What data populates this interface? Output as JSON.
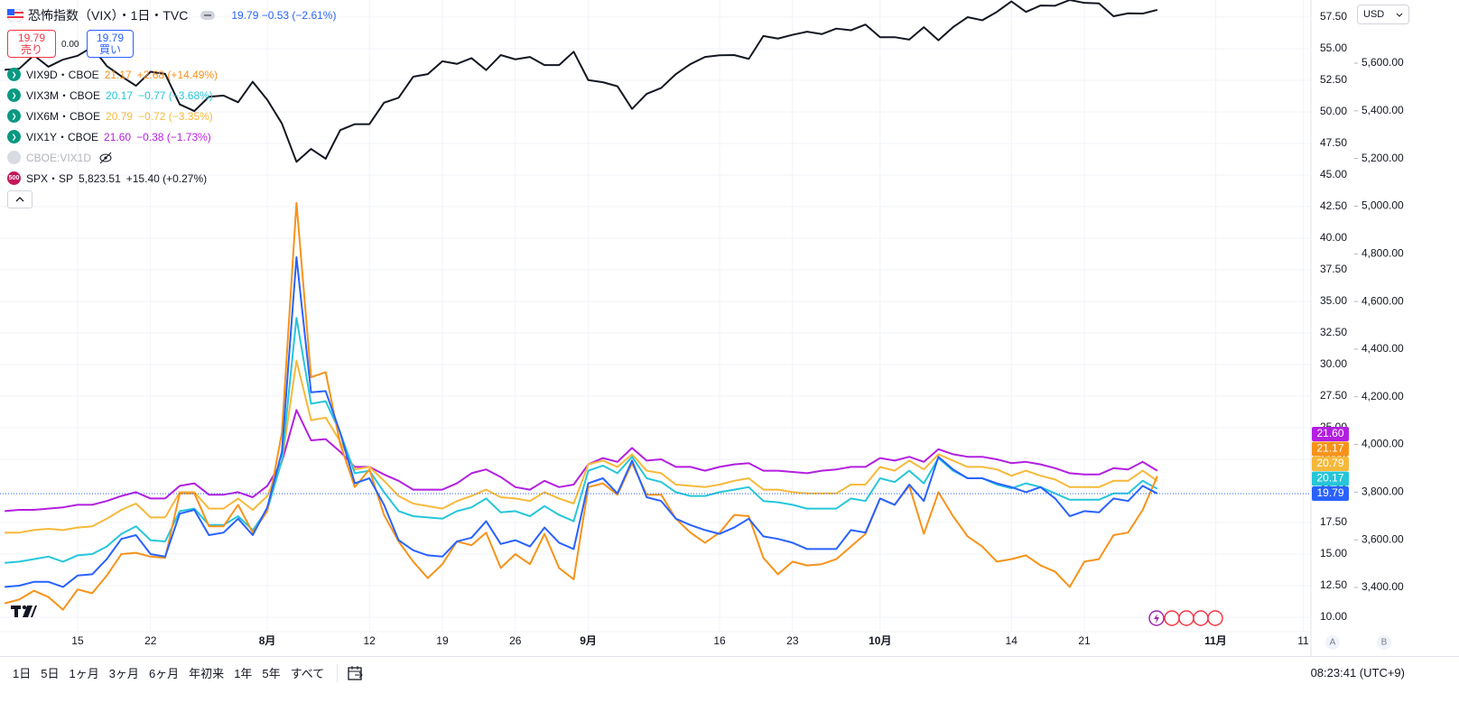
{
  "chart_data": {
    "type": "line",
    "title": "恐怖指数（VIX）・1日・TVC",
    "x": [
      0,
      1,
      2,
      3,
      4,
      5,
      6,
      7,
      8,
      9,
      10,
      11,
      12,
      13,
      14,
      15,
      16,
      17,
      18,
      19,
      20,
      21,
      22,
      23,
      24,
      25,
      26,
      27,
      28,
      29,
      30,
      31,
      32,
      33,
      34,
      35,
      36,
      37,
      38,
      39,
      40,
      41,
      42,
      43,
      44,
      45,
      46,
      47,
      48,
      49,
      50,
      51,
      52,
      53,
      54,
      55,
      56,
      57,
      58,
      59,
      60,
      61,
      62,
      63,
      64,
      65,
      66,
      67,
      68,
      69,
      70,
      71,
      72,
      73,
      74,
      75,
      76,
      77,
      78,
      79
    ],
    "xlim": [
      -0.32,
      89.53
    ],
    "xticks": [
      {
        "value": 5,
        "label": "15"
      },
      {
        "value": 10,
        "label": "22"
      },
      {
        "value": 18,
        "label": "8月"
      },
      {
        "value": 25,
        "label": "12"
      },
      {
        "value": 30,
        "label": "19"
      },
      {
        "value": 35,
        "label": "26"
      },
      {
        "value": 40,
        "label": "9月"
      },
      {
        "value": 49,
        "label": "16"
      },
      {
        "value": 54,
        "label": "23"
      },
      {
        "value": 60,
        "label": "10月"
      },
      {
        "value": 69,
        "label": "14"
      },
      {
        "value": 74,
        "label": "21"
      },
      {
        "value": 83,
        "label": "11月"
      },
      {
        "value": 89,
        "label": "11"
      }
    ],
    "ylim": [
      8.857,
      58.857
    ],
    "yticks": [
      {
        "value": 10,
        "label": "10.00"
      },
      {
        "value": 12.5,
        "label": "12.50"
      },
      {
        "value": 15,
        "label": "15.00"
      },
      {
        "value": 17.5,
        "label": "17.50"
      },
      {
        "value": 20,
        "label": "20.00"
      },
      {
        "value": 22.5,
        "label": "22.50"
      },
      {
        "value": 25,
        "label": "25.00"
      },
      {
        "value": 27.5,
        "label": "27.50"
      },
      {
        "value": 30,
        "label": "30.00"
      },
      {
        "value": 32.5,
        "label": "32.50"
      },
      {
        "value": 35,
        "label": "35.00"
      },
      {
        "value": 37.5,
        "label": "37.50"
      },
      {
        "value": 40,
        "label": "40.00"
      },
      {
        "value": 42.5,
        "label": "42.50"
      },
      {
        "value": 45,
        "label": "45.00"
      },
      {
        "value": 47.5,
        "label": "47.50"
      },
      {
        "value": 50,
        "label": "50.00"
      },
      {
        "value": 52.5,
        "label": "52.50"
      },
      {
        "value": 55,
        "label": "55.00"
      },
      {
        "value": 57.5,
        "label": "57.50"
      }
    ],
    "y2lim": [
      3214.5,
      5865.0
    ],
    "y2ticks": [
      {
        "value": 3400,
        "label": "3,400.00"
      },
      {
        "value": 3600,
        "label": "3,600.00"
      },
      {
        "value": 3800,
        "label": "3,800.00"
      },
      {
        "value": 4000,
        "label": "4,000.00"
      },
      {
        "value": 4200,
        "label": "4,200.00"
      },
      {
        "value": 4400,
        "label": "4,400.00"
      },
      {
        "value": 4600,
        "label": "4,600.00"
      },
      {
        "value": 4800,
        "label": "4,800.00"
      },
      {
        "value": 5000,
        "label": "5,000.00"
      },
      {
        "value": 5200,
        "label": "5,200.00"
      },
      {
        "value": 5400,
        "label": "5,400.00"
      },
      {
        "value": 5600,
        "label": "5,600.00"
      }
    ],
    "grid": true,
    "series": [
      {
        "color": "#2962ff",
        "last": "19.79",
        "change": "−0.53 (−2.61%)",
        "values": [
          12.4,
          12.5,
          12.8,
          12.8,
          12.4,
          13.3,
          13.4,
          14.6,
          16.2,
          16.5,
          15.0,
          14.8,
          18.2,
          18.5,
          16.5,
          16.7,
          17.8,
          16.5,
          18.7,
          23.1,
          38.5,
          27.8,
          27.9,
          24.6,
          20.6,
          21.0,
          18.9,
          16.1,
          15.3,
          14.9,
          14.8,
          16.0,
          16.3,
          17.6,
          15.8,
          16.1,
          15.6,
          17.1,
          15.9,
          15.4,
          20.6,
          21.0,
          19.8,
          22.4,
          19.5,
          19.2,
          17.8,
          17.3,
          16.9,
          16.6,
          17.1,
          17.8,
          16.4,
          16.2,
          15.9,
          15.4,
          15.4,
          15.4,
          16.9,
          16.7,
          19.4,
          18.9,
          20.5,
          19.2,
          22.7,
          21.7,
          21.0,
          21.0,
          20.6,
          20.3,
          19.9,
          20.3,
          19.4,
          18.0,
          18.4,
          18.3,
          19.4,
          19.2,
          20.4,
          19.79
        ]
      },
      {
        "name": "VIX9D・CBOE",
        "color": "#f7931a",
        "last": "21.17",
        "change": "+2.68 (+14.49%)",
        "values": [
          11.1,
          11.4,
          12.1,
          11.6,
          10.6,
          12.2,
          11.9,
          13.3,
          15.0,
          15.1,
          14.8,
          14.7,
          19.8,
          19.8,
          17.2,
          17.2,
          18.9,
          16.7,
          18.4,
          24.6,
          42.8,
          29.0,
          29.4,
          23.7,
          20.3,
          21.7,
          18.1,
          16.0,
          14.4,
          13.1,
          14.2,
          16.0,
          15.7,
          16.7,
          13.9,
          15.0,
          14.2,
          16.6,
          13.9,
          13.0,
          20.3,
          20.6,
          19.7,
          22.2,
          19.7,
          19.7,
          17.8,
          16.7,
          15.9,
          16.7,
          18.1,
          18.0,
          14.7,
          13.4,
          14.4,
          14.1,
          14.2,
          14.6,
          15.6,
          16.6,
          19.4,
          18.9,
          20.4,
          16.6,
          19.9,
          18.0,
          16.4,
          15.6,
          14.4,
          14.6,
          14.9,
          14.1,
          13.6,
          12.4,
          14.4,
          14.6,
          16.5,
          16.7,
          18.5,
          21.17
        ]
      },
      {
        "name": "VIX3M・CBOE",
        "color": "#26c6da",
        "last": "20.17",
        "change": "−0.77 (−3.68%)",
        "values": [
          14.3,
          14.4,
          14.6,
          14.8,
          14.4,
          14.9,
          15.0,
          15.6,
          16.6,
          17.2,
          16.1,
          16.0,
          18.4,
          18.6,
          17.3,
          17.3,
          18.0,
          16.9,
          18.5,
          22.4,
          33.7,
          26.9,
          27.1,
          24.6,
          21.4,
          21.6,
          19.9,
          18.4,
          18.0,
          17.9,
          17.8,
          18.4,
          18.7,
          19.4,
          18.3,
          18.4,
          18.0,
          18.8,
          18.1,
          17.6,
          21.6,
          22.0,
          21.4,
          22.7,
          21.0,
          20.7,
          19.9,
          19.6,
          19.6,
          19.9,
          20.1,
          20.3,
          19.2,
          19.1,
          18.9,
          18.6,
          18.6,
          18.6,
          19.4,
          19.2,
          21.0,
          20.7,
          21.6,
          20.6,
          22.6,
          21.6,
          21.0,
          21.0,
          20.5,
          20.2,
          20.6,
          20.3,
          19.8,
          19.3,
          19.3,
          19.3,
          19.8,
          19.8,
          20.8,
          20.17
        ]
      },
      {
        "name": "VIX6M・CBOE",
        "color": "#f6b93b",
        "last": "20.79",
        "change": "−0.72 (−3.35%)",
        "values": [
          16.7,
          16.7,
          16.9,
          17.0,
          16.9,
          17.1,
          17.2,
          17.8,
          18.5,
          19.0,
          17.9,
          17.9,
          19.9,
          19.9,
          18.6,
          18.6,
          19.4,
          18.5,
          19.6,
          22.3,
          30.3,
          25.6,
          25.8,
          23.9,
          21.7,
          21.9,
          20.8,
          19.6,
          19.0,
          18.8,
          18.6,
          19.2,
          19.6,
          20.1,
          19.5,
          19.4,
          19.2,
          19.9,
          19.4,
          19.0,
          22.1,
          22.4,
          21.9,
          22.9,
          21.6,
          21.4,
          20.5,
          20.4,
          20.3,
          20.5,
          20.8,
          21.0,
          20.1,
          20.1,
          19.9,
          19.8,
          19.8,
          19.8,
          20.5,
          20.5,
          21.9,
          21.6,
          22.4,
          21.7,
          22.9,
          22.4,
          21.9,
          21.9,
          21.7,
          21.2,
          21.6,
          21.2,
          20.9,
          20.3,
          20.3,
          20.3,
          20.8,
          20.8,
          21.6,
          20.79
        ]
      },
      {
        "name": "VIX1Y・CBOE",
        "color": "#b31fe0",
        "last": "21.60",
        "change": "−0.38 (−1.73%)",
        "values": [
          18.4,
          18.5,
          18.5,
          18.6,
          18.7,
          18.9,
          18.9,
          19.2,
          19.6,
          19.9,
          19.4,
          19.4,
          20.4,
          20.6,
          19.7,
          19.7,
          19.9,
          19.5,
          20.4,
          22.3,
          26.4,
          24.0,
          24.1,
          23.1,
          21.9,
          21.9,
          21.3,
          20.8,
          20.1,
          20.1,
          20.1,
          20.6,
          21.4,
          21.7,
          21.1,
          20.3,
          20.1,
          20.8,
          20.3,
          20.5,
          22.1,
          22.6,
          22.3,
          23.4,
          22.4,
          22.5,
          21.9,
          21.9,
          21.6,
          21.9,
          22.1,
          22.2,
          21.6,
          21.6,
          21.5,
          21.4,
          21.6,
          21.7,
          21.9,
          21.9,
          22.6,
          22.4,
          22.7,
          22.3,
          23.3,
          22.9,
          22.7,
          22.7,
          22.5,
          22.2,
          22.3,
          22.1,
          21.8,
          21.4,
          21.3,
          21.3,
          21.8,
          21.7,
          22.3,
          21.6
        ]
      },
      {
        "name": "SPX・SP",
        "color": "#131722",
        "axis": "y2",
        "last": "5,823.51",
        "change": "+15.40 (+0.27%)",
        "badge": "500",
        "values": [
          5572,
          5577,
          5633,
          5585,
          5615,
          5631,
          5667,
          5588,
          5545,
          5505,
          5564,
          5555,
          5427,
          5399,
          5459,
          5464,
          5436,
          5522,
          5446,
          5347,
          5186,
          5240,
          5199,
          5319,
          5344,
          5344,
          5434,
          5455,
          5543,
          5554,
          5608,
          5597,
          5621,
          5571,
          5634,
          5616,
          5626,
          5592,
          5592,
          5648,
          5529,
          5520,
          5503,
          5408,
          5471,
          5496,
          5554,
          5596,
          5626,
          5633,
          5634,
          5618,
          5714,
          5703,
          5719,
          5732,
          5722,
          5745,
          5738,
          5762,
          5709,
          5709,
          5699,
          5751,
          5696,
          5751,
          5793,
          5780,
          5815,
          5859,
          5815,
          5842,
          5841,
          5865,
          5853,
          5851,
          5797,
          5809,
          5808,
          5823.51
        ]
      }
    ],
    "hidden_series_label": "CBOE:VIX1D"
  },
  "trade": {
    "sell_price": "19.79",
    "sell_label": "売り",
    "spread": "0.00",
    "buy_price": "19.79",
    "buy_label": "買い"
  },
  "currency": "USD",
  "scale_buttons": [
    "A",
    "B"
  ],
  "toolbar": {
    "ranges": [
      "1日",
      "5日",
      "1ヶ月",
      "3ヶ月",
      "6ヶ月",
      "年初来",
      "1年",
      "5年",
      "すべて"
    ],
    "clock": "08:23:41 (UTC+9)"
  }
}
